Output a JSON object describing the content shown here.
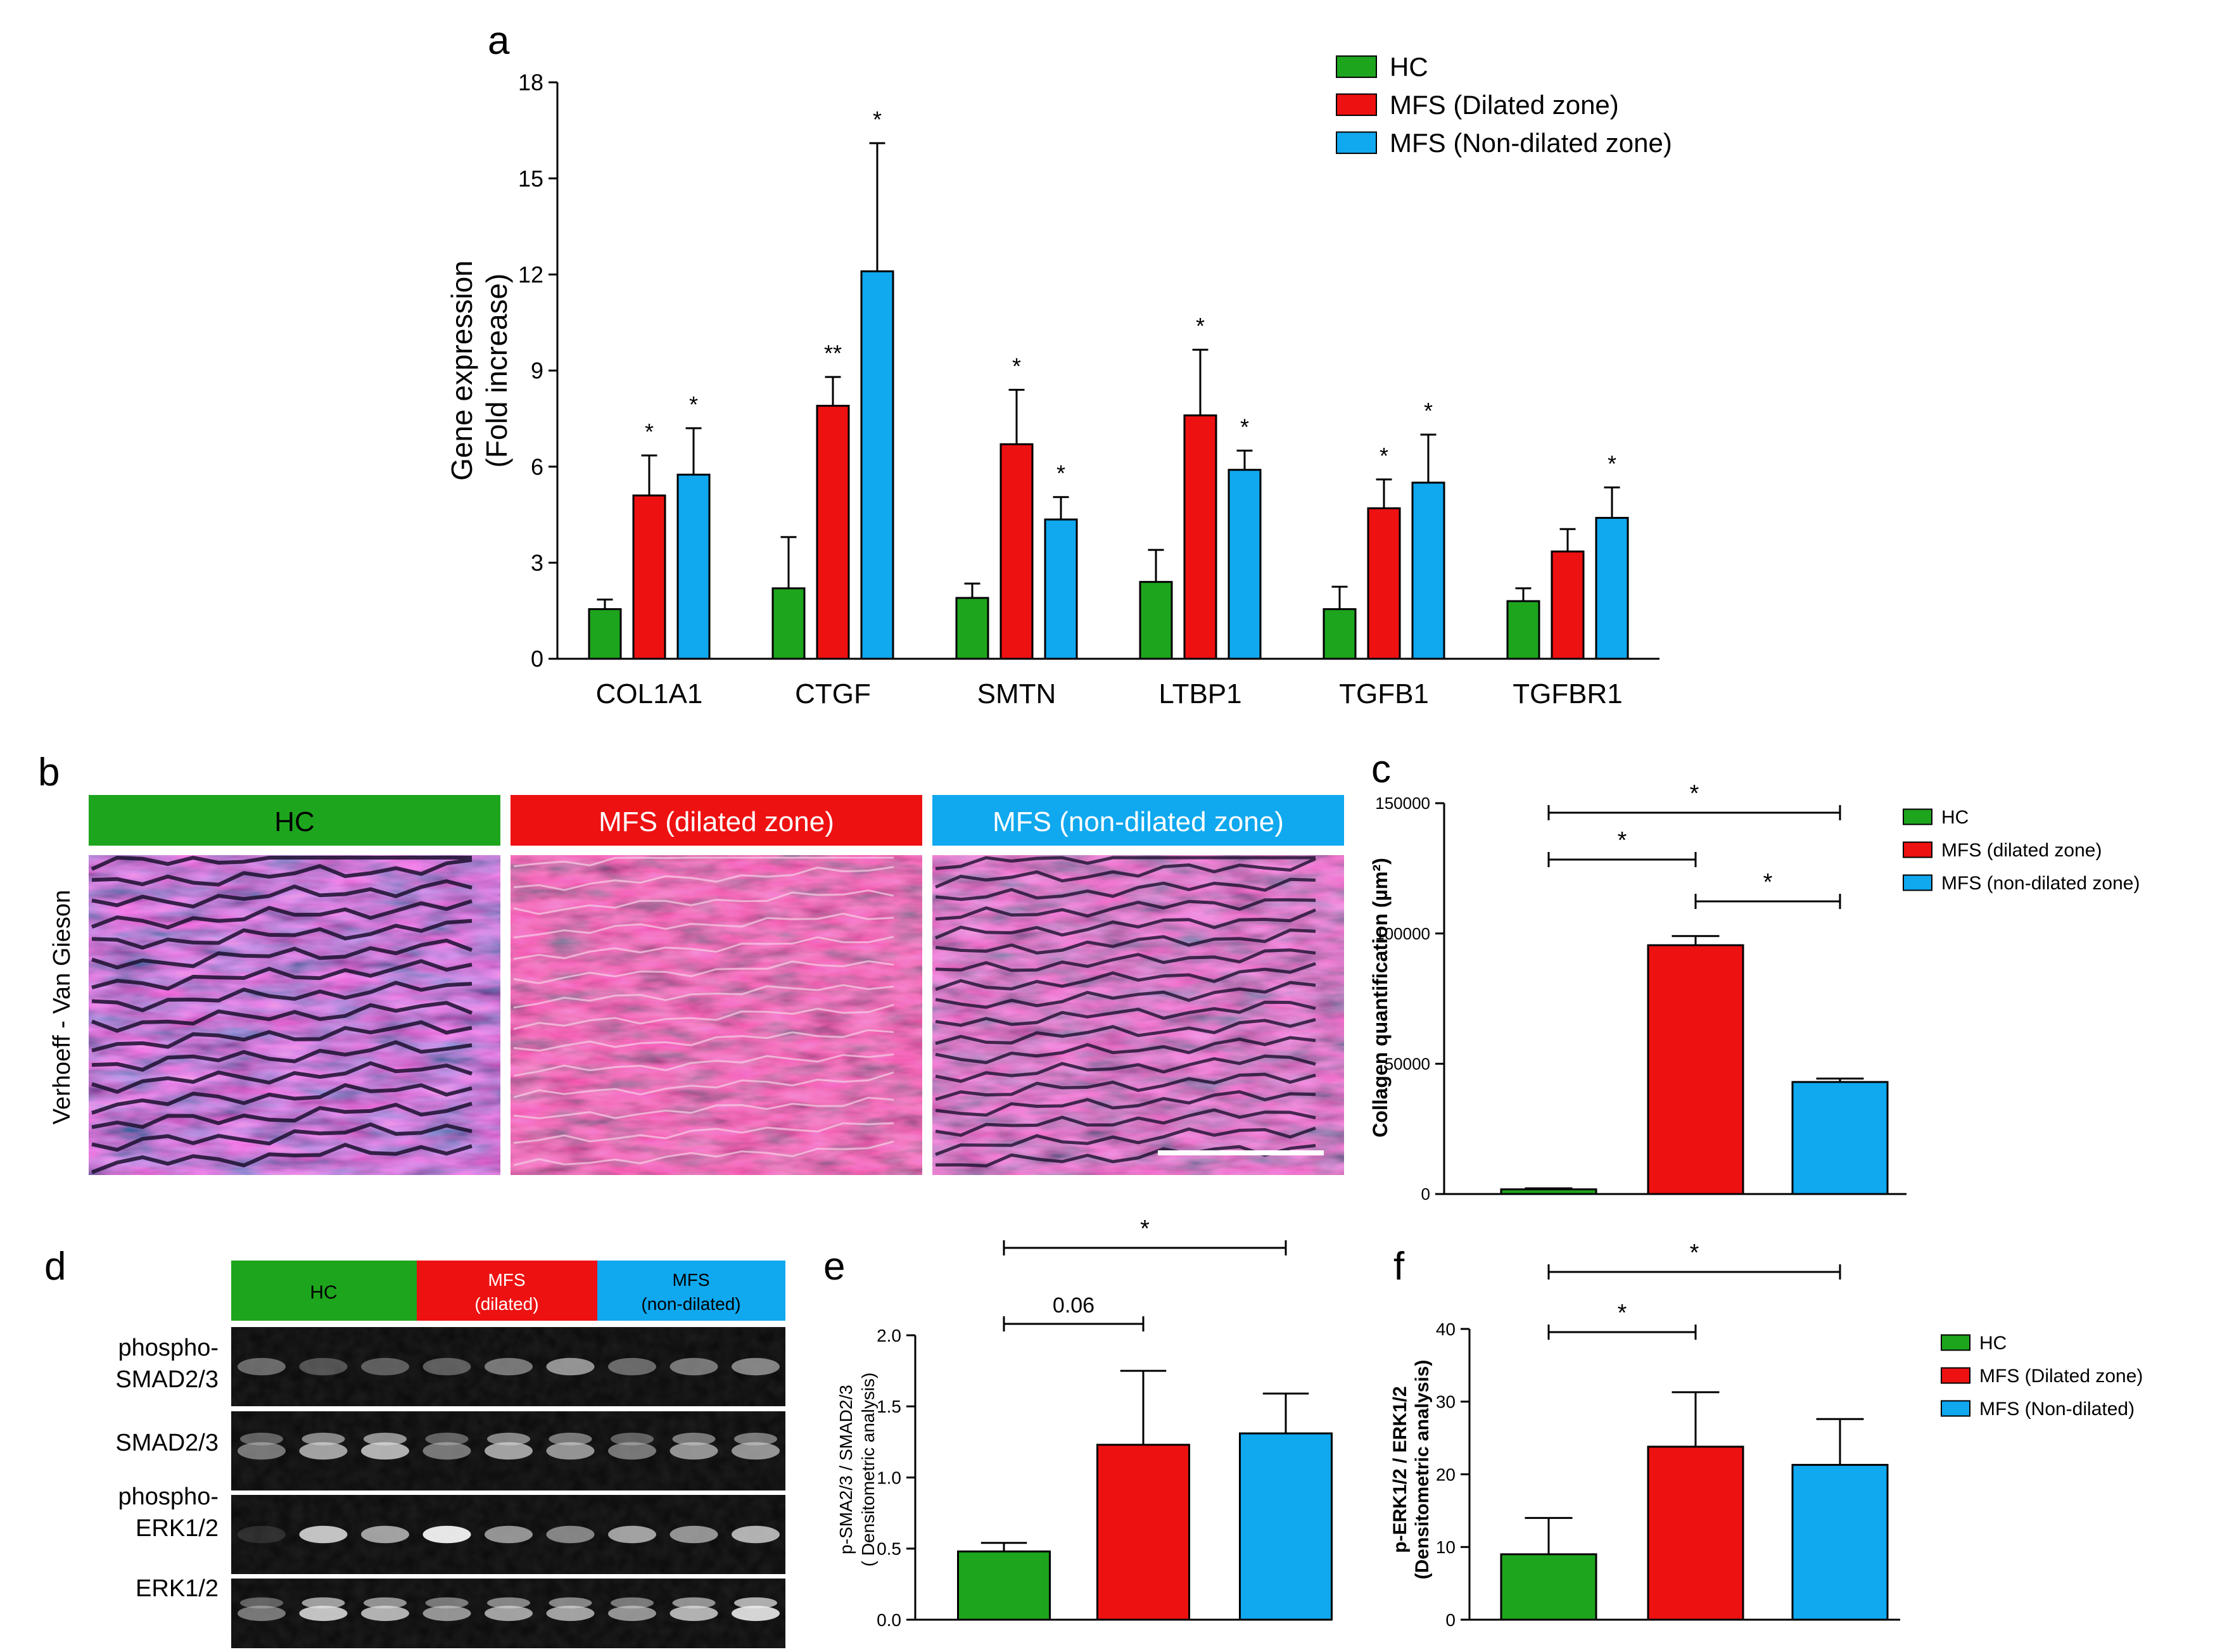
{
  "colors": {
    "hc": "#1ea51e",
    "mfs_dilated": "#ee1111",
    "mfs_nondilated": "#10a8ef",
    "axis": "#000000"
  },
  "panel_letters": {
    "a": "a",
    "b": "b",
    "c": "c",
    "d": "d",
    "e": "e",
    "f": "f"
  },
  "chart_data": [
    {
      "id": "a",
      "type": "bar",
      "title": "",
      "ylabel_line1": "Gene expression",
      "ylabel_line2": "(Fold increase)",
      "xlabel": "",
      "ylim": [
        0,
        18
      ],
      "yticks": [
        0,
        3,
        6,
        9,
        12,
        15,
        18
      ],
      "categories": [
        "COL1A1",
        "CTGF",
        "SMTN",
        "LTBP1",
        "TGFB1",
        "TGFBR1"
      ],
      "legend": [
        "HC",
        "MFS (Dilated zone)",
        "MFS (Non-dilated zone)"
      ],
      "series": [
        {
          "name": "HC",
          "values": [
            1.55,
            2.2,
            1.9,
            2.4,
            1.55,
            1.8
          ],
          "errors": [
            0.3,
            1.6,
            0.45,
            1.0,
            0.7,
            0.4
          ],
          "marks": [
            "",
            "",
            "",
            "",
            "",
            ""
          ]
        },
        {
          "name": "MFS (Dilated zone)",
          "values": [
            5.1,
            7.9,
            6.7,
            7.6,
            4.7,
            3.35
          ],
          "errors": [
            1.25,
            0.9,
            1.7,
            2.05,
            0.9,
            0.7
          ],
          "marks": [
            "*",
            "**",
            "*",
            "*",
            "*",
            ""
          ]
        },
        {
          "name": "MFS (Non-dilated zone)",
          "values": [
            5.75,
            12.1,
            4.35,
            5.9,
            5.5,
            4.4
          ],
          "errors": [
            1.45,
            4.0,
            0.7,
            0.6,
            1.5,
            0.95
          ],
          "marks": [
            "*",
            "*",
            "*",
            "*",
            "*",
            "*"
          ]
        }
      ]
    },
    {
      "id": "c",
      "type": "bar",
      "ylabel": "Collagen quantification (µm²)",
      "ylim": [
        0,
        150000
      ],
      "yticks": [
        0,
        50000,
        100000,
        150000
      ],
      "categories": [
        "HC",
        "MFS (dilated zone)",
        "MFS (non-dilated zone)"
      ],
      "legend": [
        "HC",
        "MFS  (dilated zone)",
        "MFS (non-dilated zone)"
      ],
      "values": [
        1800,
        95500,
        43000
      ],
      "errors": [
        400,
        3500,
        1300
      ],
      "comparisons": [
        {
          "from": 0,
          "to": 2,
          "label": "*"
        },
        {
          "from": 0,
          "to": 1,
          "label": "*"
        },
        {
          "from": 1,
          "to": 2,
          "label": "*"
        }
      ]
    },
    {
      "id": "e",
      "type": "bar",
      "ylabel_line1": "p-SMA2/3 / SMAD2/3",
      "ylabel_line2": "( Densitometric analysis)",
      "ylim": [
        0,
        2.0
      ],
      "yticks": [
        "0.0",
        "0.5",
        "1.0",
        "1.5",
        "2.0"
      ],
      "categories": [
        "HC",
        "MFS (Dilated zone)",
        "MFS (Non-dilated)"
      ],
      "values": [
        0.48,
        1.23,
        1.31
      ],
      "errors": [
        0.06,
        0.52,
        0.28
      ],
      "comparisons": [
        {
          "from": 0,
          "to": 2,
          "label": "*"
        },
        {
          "from": 0,
          "to": 1,
          "label": "0.06"
        }
      ]
    },
    {
      "id": "f",
      "type": "bar",
      "ylabel_line1": "p-ERK1/2 / ERK1/2",
      "ylabel_line2": "(Densitometric analysis)",
      "ylim": [
        0,
        40
      ],
      "yticks": [
        0,
        10,
        20,
        30,
        40
      ],
      "categories": [
        "HC",
        "MFS (Dilated zone)",
        "MFS (Non-dilated)"
      ],
      "legend": [
        "HC",
        "MFS (Dilated zone)",
        "MFS (Non-dilated)"
      ],
      "values": [
        9,
        23.8,
        21.3
      ],
      "errors": [
        5,
        7.5,
        6.3
      ],
      "comparisons": [
        {
          "from": 0,
          "to": 2,
          "label": "*"
        },
        {
          "from": 0,
          "to": 1,
          "label": "*"
        }
      ]
    }
  ],
  "panel_b": {
    "stain_label": "Verhoeff - Van Gieson",
    "headers": [
      "HC",
      "MFS (dilated zone)",
      "MFS (non-dilated zone)"
    ]
  },
  "panel_d": {
    "headers": [
      {
        "line1": "HC",
        "line2": ""
      },
      {
        "line1": "MFS",
        "line2": "(dilated)"
      },
      {
        "line1": "MFS",
        "line2": "(non-dilated)"
      }
    ],
    "rows": [
      {
        "line1": "phospho-",
        "line2": "SMAD2/3"
      },
      {
        "line1": "SMAD2/3",
        "line2": ""
      },
      {
        "line1": "phospho-",
        "line2": "ERK1/2"
      },
      {
        "line1": "ERK1/2",
        "line2": ""
      }
    ]
  }
}
